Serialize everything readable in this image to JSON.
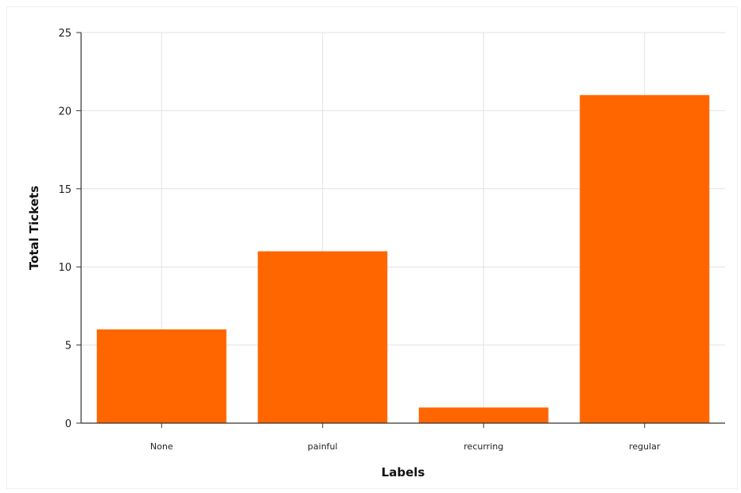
{
  "chart_data": {
    "type": "bar",
    "categories": [
      "None",
      "painful",
      "recurring",
      "regular"
    ],
    "values": [
      6,
      11,
      1,
      21
    ],
    "xlabel": "Labels",
    "ylabel": "Total Tickets",
    "ylim": [
      0,
      25
    ],
    "yticks": [
      0,
      5,
      10,
      15,
      20,
      25
    ],
    "grid": true,
    "bar_color": "#ff6600"
  }
}
